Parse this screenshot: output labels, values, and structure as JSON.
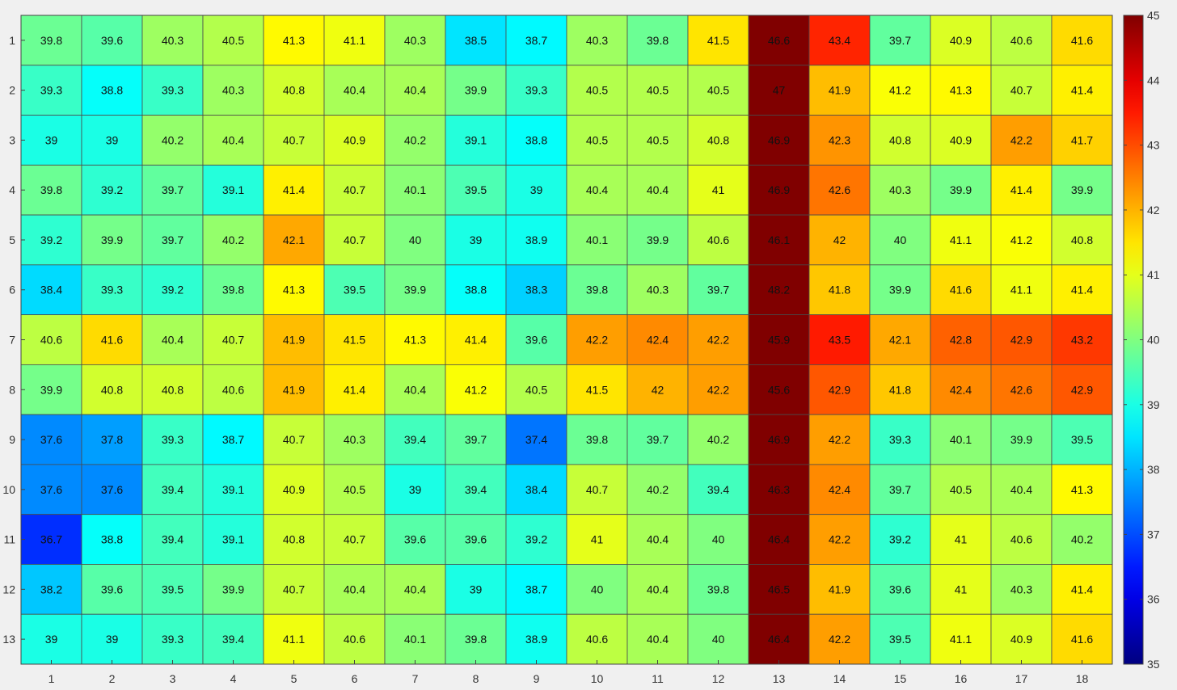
{
  "chart_data": {
    "type": "heatmap",
    "title": "",
    "xlabel": "",
    "ylabel": "",
    "x_labels": [
      "1",
      "2",
      "3",
      "4",
      "5",
      "6",
      "7",
      "8",
      "9",
      "10",
      "11",
      "12",
      "13",
      "14",
      "15",
      "16",
      "17",
      "18"
    ],
    "y_labels": [
      "1",
      "2",
      "3",
      "4",
      "5",
      "6",
      "7",
      "8",
      "9",
      "10",
      "11",
      "12",
      "13"
    ],
    "values": [
      [
        39.8,
        39.6,
        40.3,
        40.5,
        41.3,
        41.1,
        40.3,
        38.5,
        38.7,
        40.3,
        39.8,
        41.5,
        46.6,
        43.4,
        39.7,
        40.9,
        40.6,
        41.6
      ],
      [
        39.3,
        38.8,
        39.3,
        40.3,
        40.8,
        40.4,
        40.4,
        39.9,
        39.3,
        40.5,
        40.5,
        40.5,
        47,
        41.9,
        41.2,
        41.3,
        40.7,
        41.4
      ],
      [
        39,
        39,
        40.2,
        40.4,
        40.7,
        40.9,
        40.2,
        39.1,
        38.8,
        40.5,
        40.5,
        40.8,
        46.9,
        42.3,
        40.8,
        40.9,
        42.2,
        41.7
      ],
      [
        39.8,
        39.2,
        39.7,
        39.1,
        41.4,
        40.7,
        40.1,
        39.5,
        39,
        40.4,
        40.4,
        41,
        46.9,
        42.6,
        40.3,
        39.9,
        41.4,
        39.9
      ],
      [
        39.2,
        39.9,
        39.7,
        40.2,
        42.1,
        40.7,
        40,
        39,
        38.9,
        40.1,
        39.9,
        40.6,
        46.1,
        42,
        40,
        41.1,
        41.2,
        40.8
      ],
      [
        38.4,
        39.3,
        39.2,
        39.8,
        41.3,
        39.5,
        39.9,
        38.8,
        38.3,
        39.8,
        40.3,
        39.7,
        48.2,
        41.8,
        39.9,
        41.6,
        41.1,
        41.4
      ],
      [
        40.6,
        41.6,
        40.4,
        40.7,
        41.9,
        41.5,
        41.3,
        41.4,
        39.6,
        42.2,
        42.4,
        42.2,
        45.9,
        43.5,
        42.1,
        42.8,
        42.9,
        43.2
      ],
      [
        39.9,
        40.8,
        40.8,
        40.6,
        41.9,
        41.4,
        40.4,
        41.2,
        40.5,
        41.5,
        42,
        42.2,
        45.6,
        42.9,
        41.8,
        42.4,
        42.6,
        42.9
      ],
      [
        37.6,
        37.8,
        39.3,
        38.7,
        40.7,
        40.3,
        39.4,
        39.7,
        37.4,
        39.8,
        39.7,
        40.2,
        46.9,
        42.2,
        39.3,
        40.1,
        39.9,
        39.5
      ],
      [
        37.6,
        37.6,
        39.4,
        39.1,
        40.9,
        40.5,
        39,
        39.4,
        38.4,
        40.7,
        40.2,
        39.4,
        46.3,
        42.4,
        39.7,
        40.5,
        40.4,
        41.3
      ],
      [
        36.7,
        38.8,
        39.4,
        39.1,
        40.8,
        40.7,
        39.6,
        39.6,
        39.2,
        41,
        40.4,
        40,
        46.4,
        42.2,
        39.2,
        41,
        40.6,
        40.2
      ],
      [
        38.2,
        39.6,
        39.5,
        39.9,
        40.7,
        40.4,
        40.4,
        39,
        38.7,
        40,
        40.4,
        39.8,
        46.5,
        41.9,
        39.6,
        41,
        40.3,
        41.4
      ],
      [
        39,
        39,
        39.3,
        39.4,
        41.1,
        40.6,
        40.1,
        39.8,
        38.9,
        40.6,
        40.4,
        40,
        46.4,
        42.2,
        39.5,
        41.1,
        40.9,
        41.6
      ]
    ],
    "colormap": "jet",
    "clim": [
      35,
      45
    ],
    "colorbar_ticks": [
      35,
      36,
      37,
      38,
      39,
      40,
      41,
      42,
      43,
      44,
      45
    ],
    "grid": false,
    "legend": "colorbar-right"
  }
}
